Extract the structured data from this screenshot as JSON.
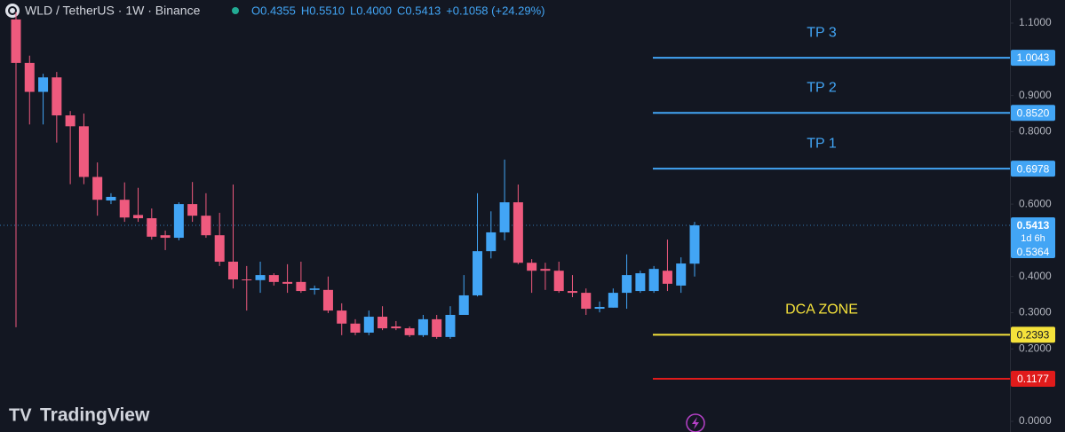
{
  "chart_data": {
    "type": "candlestick",
    "header": {
      "symbol": "WLD / TetherUS · 1W · Binance",
      "ohlc": [
        "O0.4355",
        "H0.5510",
        "L0.4000",
        "C0.5413"
      ],
      "change": "+0.1058 (+24.29%)"
    },
    "brand": "TradingView",
    "up_color": "#42a5f5",
    "down_color": "#ef5a7e",
    "open": [
      1.11,
      0.99,
      0.91,
      0.95,
      0.845,
      0.815,
      0.675,
      0.61,
      0.612,
      0.57,
      0.561,
      0.514,
      0.507,
      0.6,
      0.568,
      0.514,
      0.441,
      0.392,
      0.39,
      0.404,
      0.385,
      0.385,
      0.363,
      0.363,
      0.306,
      0.27,
      0.245,
      0.289,
      0.262,
      0.257,
      0.238,
      0.282,
      0.233,
      0.294,
      0.348,
      0.47,
      0.522,
      0.605,
      0.438,
      0.421,
      0.416,
      0.36,
      0.355,
      0.311,
      0.314,
      0.355,
      0.36,
      0.36,
      0.416,
      0.375,
      0.4355
    ],
    "high": [
      1.13,
      1.01,
      0.96,
      0.965,
      0.857,
      0.85,
      0.715,
      0.63,
      0.66,
      0.645,
      0.588,
      0.527,
      0.605,
      0.661,
      0.63,
      0.576,
      0.654,
      0.429,
      0.441,
      0.409,
      0.434,
      0.441,
      0.375,
      0.4,
      0.326,
      0.282,
      0.306,
      0.318,
      0.277,
      0.262,
      0.294,
      0.294,
      0.318,
      0.404,
      0.63,
      0.58,
      0.723,
      0.654,
      0.448,
      0.438,
      0.441,
      0.404,
      0.367,
      0.331,
      0.367,
      0.461,
      0.416,
      0.429,
      0.502,
      0.453,
      0.551
    ],
    "low": [
      0.26,
      0.82,
      0.82,
      0.77,
      0.655,
      0.655,
      0.568,
      0.6,
      0.551,
      0.551,
      0.502,
      0.473,
      0.5,
      0.551,
      0.507,
      0.429,
      0.367,
      0.306,
      0.355,
      0.375,
      0.355,
      0.355,
      0.35,
      0.299,
      0.238,
      0.238,
      0.238,
      0.252,
      0.252,
      0.233,
      0.233,
      0.228,
      0.228,
      0.294,
      0.345,
      0.45,
      0.5,
      0.434,
      0.355,
      0.363,
      0.355,
      0.343,
      0.294,
      0.301,
      0.314,
      0.311,
      0.355,
      0.355,
      0.36,
      0.355,
      0.4
    ],
    "close": [
      0.99,
      0.91,
      0.95,
      0.845,
      0.815,
      0.675,
      0.612,
      0.62,
      0.563,
      0.561,
      0.51,
      0.507,
      0.6,
      0.568,
      0.514,
      0.441,
      0.392,
      0.39,
      0.404,
      0.385,
      0.38,
      0.36,
      0.367,
      0.306,
      0.27,
      0.245,
      0.289,
      0.257,
      0.257,
      0.238,
      0.282,
      0.233,
      0.294,
      0.348,
      0.47,
      0.522,
      0.605,
      0.438,
      0.416,
      0.416,
      0.36,
      0.355,
      0.311,
      0.316,
      0.355,
      0.404,
      0.409,
      0.421,
      0.38,
      0.436,
      0.5413
    ],
    "ylim": [
      -0.0294,
      1.1637
    ],
    "yticks": [
      {
        "value": 0,
        "label": "0.0000"
      },
      {
        "value": 0.2,
        "label": "0.2000"
      },
      {
        "value": 0.3,
        "label": "0.3000"
      },
      {
        "value": 0.4,
        "label": "0.4000"
      },
      {
        "value": 0.6,
        "label": "0.6000"
      },
      {
        "value": 0.8,
        "label": "0.8000"
      },
      {
        "value": 0.9,
        "label": "0.9000"
      },
      {
        "value": 1.1,
        "label": "1.1000"
      }
    ],
    "levels": [
      {
        "name": "TP 3",
        "price": {
          "value": 1.0043,
          "label": "1.0043"
        },
        "color": "#42a5f5"
      },
      {
        "name": "TP 2",
        "price": {
          "value": 0.852,
          "label": "0.8520"
        },
        "color": "#42a5f5"
      },
      {
        "name": "TP 1",
        "price": {
          "value": 0.6978,
          "label": "0.6978"
        },
        "color": "#42a5f5"
      },
      {
        "name": "DCA ZONE",
        "price": {
          "value": 0.2393,
          "label": "0.2393"
        },
        "color": "#f5e23b"
      },
      {
        "price": {
          "value": 0.1177,
          "label": "0.1177"
        },
        "color": "#e01b1b"
      }
    ],
    "last_price": {
      "value": 0.5413,
      "label": "0.5413"
    },
    "countdown": "1d 6h",
    "mark_price": {
      "value": 0.5364,
      "label": "0.5364"
    }
  }
}
